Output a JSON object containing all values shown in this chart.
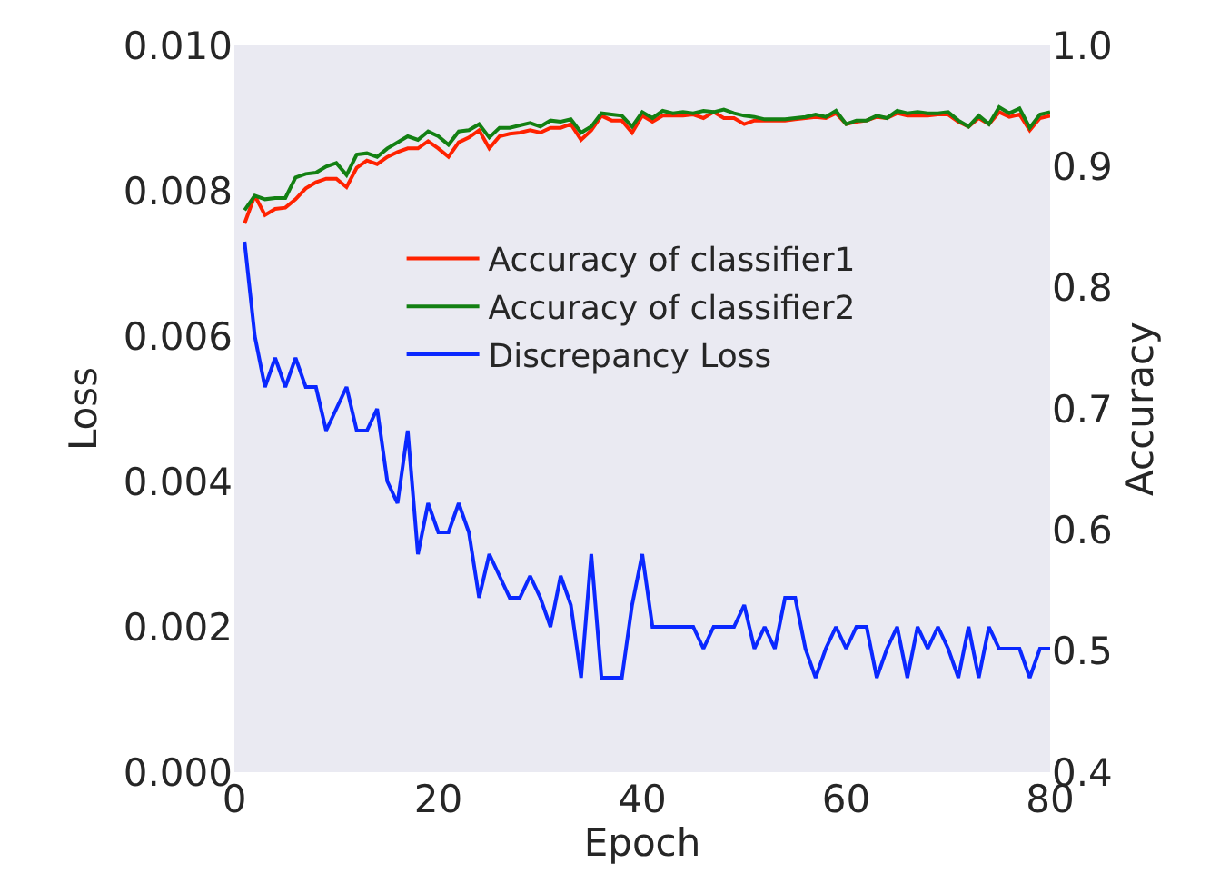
{
  "chart_data": {
    "type": "line",
    "xlabel": "Epoch",
    "ylabel": "Loss",
    "y2label": "Accuracy",
    "x": [
      1,
      2,
      3,
      4,
      5,
      6,
      7,
      8,
      9,
      10,
      11,
      12,
      13,
      14,
      15,
      16,
      17,
      18,
      19,
      20,
      21,
      22,
      23,
      24,
      25,
      26,
      27,
      28,
      29,
      30,
      31,
      32,
      33,
      34,
      35,
      36,
      37,
      38,
      39,
      40,
      41,
      42,
      43,
      44,
      45,
      46,
      47,
      48,
      49,
      50,
      51,
      52,
      53,
      54,
      55,
      56,
      57,
      58,
      59,
      60,
      61,
      62,
      63,
      64,
      65,
      66,
      67,
      68,
      69,
      70,
      71,
      72,
      73,
      74,
      75,
      76,
      77,
      78,
      79,
      80
    ],
    "series": [
      {
        "name": "Accuracy of classifier1",
        "color": "#ff2200",
        "axis": "y2",
        "values": [
          0.853,
          0.876,
          0.86,
          0.865,
          0.866,
          0.873,
          0.882,
          0.887,
          0.89,
          0.89,
          0.883,
          0.899,
          0.905,
          0.902,
          0.908,
          0.912,
          0.915,
          0.915,
          0.921,
          0.915,
          0.908,
          0.92,
          0.924,
          0.93,
          0.915,
          0.925,
          0.927,
          0.928,
          0.93,
          0.928,
          0.932,
          0.932,
          0.935,
          0.922,
          0.93,
          0.942,
          0.938,
          0.938,
          0.928,
          0.942,
          0.937,
          0.942,
          0.942,
          0.942,
          0.943,
          0.94,
          0.945,
          0.94,
          0.94,
          0.935,
          0.938,
          0.938,
          0.938,
          0.938,
          0.939,
          0.94,
          0.941,
          0.94,
          0.944,
          0.935,
          0.937,
          0.938,
          0.941,
          0.94,
          0.944,
          0.942,
          0.942,
          0.942,
          0.943,
          0.943,
          0.937,
          0.933,
          0.94,
          0.935,
          0.945,
          0.941,
          0.943,
          0.93,
          0.94,
          0.942
        ]
      },
      {
        "name": "Accuracy of classifier2",
        "color": "#138013",
        "axis": "y2",
        "values": [
          0.864,
          0.876,
          0.873,
          0.874,
          0.874,
          0.891,
          0.894,
          0.895,
          0.9,
          0.903,
          0.893,
          0.91,
          0.911,
          0.908,
          0.915,
          0.92,
          0.925,
          0.922,
          0.929,
          0.925,
          0.918,
          0.929,
          0.93,
          0.935,
          0.924,
          0.932,
          0.932,
          0.934,
          0.936,
          0.933,
          0.938,
          0.937,
          0.939,
          0.928,
          0.933,
          0.944,
          0.943,
          0.942,
          0.933,
          0.945,
          0.94,
          0.946,
          0.944,
          0.945,
          0.944,
          0.946,
          0.945,
          0.947,
          0.944,
          0.942,
          0.941,
          0.939,
          0.939,
          0.939,
          0.94,
          0.941,
          0.943,
          0.941,
          0.946,
          0.935,
          0.938,
          0.938,
          0.942,
          0.94,
          0.946,
          0.944,
          0.945,
          0.944,
          0.944,
          0.945,
          0.938,
          0.933,
          0.942,
          0.935,
          0.949,
          0.944,
          0.948,
          0.932,
          0.943,
          0.945
        ]
      },
      {
        "name": "Discrepancy Loss",
        "color": "#0a28ff",
        "values": [
          0.0073,
          0.006,
          0.0053,
          0.0057,
          0.0053,
          0.0057,
          0.0053,
          0.0053,
          0.0047,
          0.005,
          0.0053,
          0.0047,
          0.0047,
          0.005,
          0.004,
          0.0037,
          0.0047,
          0.003,
          0.0037,
          0.0033,
          0.0033,
          0.0037,
          0.0033,
          0.0024,
          0.003,
          0.0027,
          0.0024,
          0.0024,
          0.0027,
          0.0024,
          0.002,
          0.0027,
          0.0023,
          0.0013,
          0.003,
          0.0013,
          0.0013,
          0.0013,
          0.0023,
          0.003,
          0.002,
          0.002,
          0.002,
          0.002,
          0.002,
          0.0017,
          0.002,
          0.002,
          0.002,
          0.0023,
          0.0017,
          0.002,
          0.0017,
          0.0024,
          0.0024,
          0.0017,
          0.0013,
          0.0017,
          0.002,
          0.0017,
          0.002,
          0.002,
          0.0013,
          0.0017,
          0.002,
          0.0013,
          0.002,
          0.0017,
          0.002,
          0.0017,
          0.0013,
          0.002,
          0.0013,
          0.002,
          0.0017,
          0.0017,
          0.0017,
          0.0013,
          0.0017,
          0.0017
        ]
      }
    ],
    "xlim": [
      0,
      80
    ],
    "xticks": [
      0,
      20,
      40,
      60,
      80
    ],
    "ylim": [
      0,
      0.01
    ],
    "yticks": [
      {
        "value": 0,
        "label": "0.000"
      },
      {
        "value": 0.002,
        "label": "0.002"
      },
      {
        "value": 0.004,
        "label": "0.004"
      },
      {
        "value": 0.006,
        "label": "0.006"
      },
      {
        "value": 0.008,
        "label": "0.008"
      },
      {
        "value": 0.01,
        "label": "0.010"
      }
    ],
    "y2lim": [
      0.4,
      1.0
    ],
    "y2ticks": [
      0.4,
      0.5,
      0.6,
      0.7,
      0.8,
      0.9,
      {
        "value": 1.0,
        "label": "1.0"
      }
    ],
    "grid": false,
    "legend": "right",
    "marker": "none",
    "line_style": "solid"
  }
}
